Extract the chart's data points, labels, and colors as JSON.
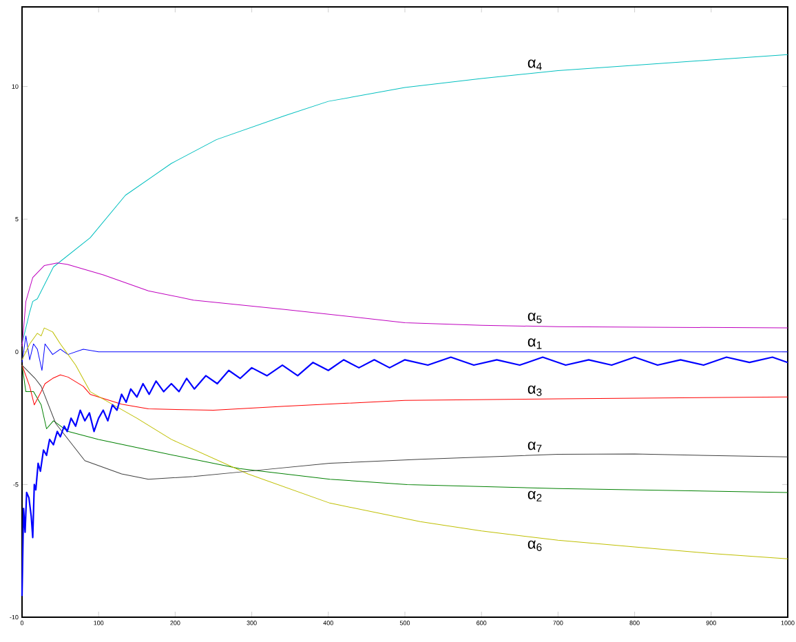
{
  "chart_data": {
    "type": "line",
    "xlim": [
      0,
      1000
    ],
    "ylim": [
      -10,
      13
    ],
    "xticks": [
      0,
      100,
      200,
      300,
      400,
      500,
      600,
      700,
      800,
      900,
      1000
    ],
    "yticks": [
      -10,
      -5,
      0,
      5,
      10
    ],
    "series": [
      {
        "name": "α$_{1}$",
        "color": "#0000ff",
        "x": [
          0,
          5,
          10,
          15,
          20,
          26,
          30,
          40,
          50,
          60,
          80,
          100,
          200,
          400,
          600,
          800,
          1000
        ],
        "values": [
          -0.4,
          0.6,
          -0.3,
          0.3,
          0.1,
          -0.7,
          0.3,
          -0.1,
          0.1,
          -0.1,
          0.1,
          0,
          0,
          0,
          0,
          0,
          0
        ]
      },
      {
        "name": "α$_{2}$",
        "color": "#008000",
        "x": [
          0,
          5,
          15,
          25,
          32,
          41,
          60,
          100,
          165,
          224,
          284,
          402,
          503,
          700,
          1000
        ],
        "values": [
          -0.5,
          -1.5,
          -1.5,
          -2.0,
          -2.9,
          -2.6,
          -3.0,
          -3.3,
          -3.7,
          -4.05,
          -4.4,
          -4.8,
          -5.0,
          -5.15,
          -5.3
        ]
      },
      {
        "name": "α$_{3}$",
        "color": "#ff0000",
        "x": [
          0,
          10,
          16,
          25,
          30,
          40,
          50,
          60,
          80,
          89,
          130,
          165,
          250,
          343,
          500,
          700,
          1000
        ],
        "values": [
          -0.5,
          -1.3,
          -2.0,
          -1.5,
          -1.2,
          -1.0,
          -0.87,
          -0.95,
          -1.3,
          -1.6,
          -1.97,
          -2.15,
          -2.2,
          -2.05,
          -1.83,
          -1.77,
          -1.7
        ]
      },
      {
        "name": "α$_{4}$",
        "color": "#00bfbf",
        "x": [
          0,
          10,
          14,
          20,
          41,
          89,
          135,
          195,
          254,
          343,
          400,
          500,
          600,
          700,
          800,
          900,
          1000
        ],
        "values": [
          0.3,
          1.5,
          1.9,
          2.0,
          3.2,
          4.3,
          5.9,
          7.1,
          8.0,
          8.9,
          9.44,
          9.96,
          10.3,
          10.6,
          10.8,
          11.0,
          11.2
        ]
      },
      {
        "name": "α$_{5}$",
        "color": "#bf00bf",
        "x": [
          0,
          5,
          14,
          29,
          46,
          59,
          106,
          165,
          224,
          343,
          500,
          600,
          700,
          1000
        ],
        "values": [
          0.2,
          1.9,
          2.8,
          3.25,
          3.35,
          3.3,
          2.9,
          2.3,
          1.95,
          1.6,
          1.1,
          1.0,
          0.95,
          0.9
        ]
      },
      {
        "name": "α$_{6}$",
        "color": "#bfbf00",
        "x": [
          0,
          10,
          20,
          25,
          29,
          40,
          50,
          70,
          89,
          150,
          195,
          295,
          402,
          520,
          600,
          700,
          800,
          900,
          1000
        ],
        "values": [
          -0.3,
          0.3,
          0.7,
          0.6,
          0.9,
          0.75,
          0.3,
          -0.5,
          -1.5,
          -2.5,
          -3.3,
          -4.6,
          -5.7,
          -6.4,
          -6.75,
          -7.1,
          -7.35,
          -7.6,
          -7.8
        ]
      },
      {
        "name": "α$_{7}$",
        "color": "#404040",
        "x": [
          0,
          17,
          25,
          44,
          82,
          130,
          165,
          224,
          295,
          402,
          520,
          700,
          800,
          1000
        ],
        "values": [
          -0.5,
          -1.0,
          -1.3,
          -2.7,
          -4.1,
          -4.6,
          -4.8,
          -4.7,
          -4.5,
          -4.2,
          -4.05,
          -3.86,
          -3.85,
          -3.96
        ]
      },
      {
        "color": "#0000ff",
        "x": [
          0,
          2,
          4,
          6,
          9,
          12,
          14,
          16,
          18,
          21,
          24,
          28,
          32,
          36,
          41,
          46,
          50,
          55,
          59,
          64,
          70,
          76,
          82,
          88,
          94,
          100,
          106,
          112,
          118,
          124,
          130,
          136,
          142,
          150,
          158,
          166,
          175,
          185,
          195,
          205,
          215,
          225,
          240,
          255,
          270,
          285,
          300,
          320,
          340,
          360,
          380,
          400,
          420,
          440,
          460,
          480,
          500,
          530,
          560,
          590,
          620,
          650,
          680,
          710,
          740,
          770,
          800,
          830,
          860,
          890,
          920,
          950,
          980,
          1000
        ],
        "values": [
          -9.2,
          -5.9,
          -6.8,
          -5.3,
          -5.5,
          -6.2,
          -7.0,
          -5.0,
          -5.2,
          -4.2,
          -4.5,
          -3.7,
          -3.9,
          -3.3,
          -3.5,
          -3.0,
          -3.2,
          -2.8,
          -3.0,
          -2.5,
          -2.8,
          -2.2,
          -2.6,
          -2.3,
          -3.0,
          -2.5,
          -2.2,
          -2.6,
          -2.0,
          -2.2,
          -1.6,
          -1.9,
          -1.4,
          -1.7,
          -1.2,
          -1.6,
          -1.1,
          -1.5,
          -1.2,
          -1.5,
          -1.0,
          -1.4,
          -0.9,
          -1.2,
          -0.7,
          -1.0,
          -0.6,
          -0.9,
          -0.5,
          -0.9,
          -0.4,
          -0.7,
          -0.3,
          -0.6,
          -0.3,
          -0.6,
          -0.3,
          -0.5,
          -0.2,
          -0.5,
          -0.3,
          -0.5,
          -0.2,
          -0.5,
          -0.3,
          -0.5,
          -0.2,
          -0.5,
          -0.3,
          -0.5,
          -0.2,
          -0.4,
          -0.2,
          -0.4
        ]
      }
    ]
  }
}
